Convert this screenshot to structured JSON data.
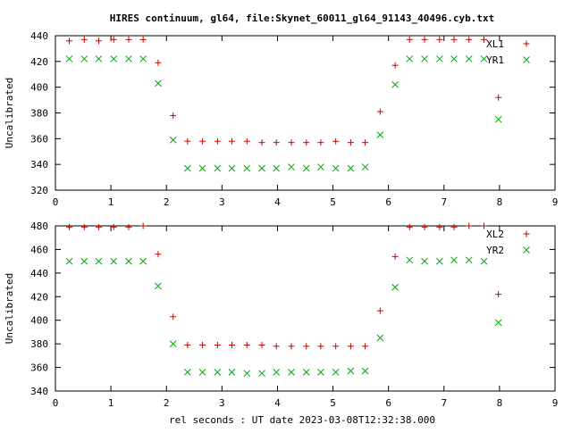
{
  "chart_data": {
    "type": "scatter",
    "title": "HIRES continuum, gl64, file:Skynet_60011_gl64_91143_40496.cyb.txt",
    "xlabel": "rel seconds : UT date 2023-03-08T12:32:38.000",
    "panels": [
      {
        "ylabel": "Uncalibrated",
        "xlim": [
          0,
          9
        ],
        "ylim": [
          320,
          440
        ],
        "xticks": [
          0,
          1,
          2,
          3,
          4,
          5,
          6,
          7,
          8,
          9
        ],
        "yticks": [
          320,
          340,
          360,
          380,
          400,
          420,
          440
        ],
        "legend_position": "top-right",
        "series": [
          {
            "name": "XL1",
            "marker": "plus",
            "color": "#cc0000",
            "x": [
              0.25,
              0.52,
              0.78,
              1.05,
              1.32,
              1.58,
              1.85,
              2.12,
              2.38,
              2.65,
              2.92,
              3.18,
              3.45,
              3.72,
              3.98,
              4.25,
              4.52,
              4.78,
              5.05,
              5.32,
              5.58,
              5.85,
              6.12,
              6.38,
              6.65,
              6.92,
              7.18,
              7.45,
              7.72,
              7.98
            ],
            "y": [
              436,
              437,
              436,
              437,
              437,
              437,
              419,
              378,
              358,
              358,
              358,
              358,
              358,
              357,
              357,
              357,
              357,
              357,
              358,
              357,
              357,
              381,
              417,
              437,
              437,
              437,
              437,
              437,
              437,
              392
            ]
          },
          {
            "name": "YR1",
            "marker": "cross",
            "color": "#00aa00",
            "x": [
              0.25,
              0.52,
              0.78,
              1.05,
              1.32,
              1.58,
              1.85,
              2.12,
              2.38,
              2.65,
              2.92,
              3.18,
              3.45,
              3.72,
              3.98,
              4.25,
              4.52,
              4.78,
              5.05,
              5.32,
              5.58,
              5.85,
              6.12,
              6.38,
              6.65,
              6.92,
              7.18,
              7.45,
              7.72,
              7.98
            ],
            "y": [
              422,
              422,
              422,
              422,
              422,
              422,
              403,
              359,
              337,
              337,
              337,
              337,
              337,
              337,
              337,
              338,
              337,
              338,
              337,
              337,
              338,
              363,
              402,
              422,
              422,
              422,
              422,
              422,
              422,
              375
            ]
          }
        ]
      },
      {
        "ylabel": "Uncalibrated",
        "xlim": [
          0,
          9
        ],
        "ylim": [
          340,
          480
        ],
        "xticks": [
          0,
          1,
          2,
          3,
          4,
          5,
          6,
          7,
          8,
          9
        ],
        "yticks": [
          340,
          360,
          380,
          400,
          420,
          440,
          460,
          480
        ],
        "legend_position": "top-right",
        "series": [
          {
            "name": "XL2",
            "marker": "plus",
            "color": "#cc0000",
            "x": [
              0.25,
              0.52,
              0.78,
              1.05,
              1.32,
              1.58,
              1.85,
              2.12,
              2.38,
              2.65,
              2.92,
              3.18,
              3.45,
              3.72,
              3.98,
              4.25,
              4.52,
              4.78,
              5.05,
              5.32,
              5.58,
              5.85,
              6.12,
              6.38,
              6.65,
              6.92,
              7.18,
              7.45,
              7.72,
              7.98
            ],
            "y": [
              479,
              479,
              479,
              479,
              479,
              480,
              456,
              403,
              379,
              379,
              379,
              379,
              379,
              379,
              378,
              378,
              378,
              378,
              378,
              378,
              378,
              408,
              454,
              479,
              479,
              479,
              479,
              480,
              480,
              422
            ]
          },
          {
            "name": "YR2",
            "marker": "cross",
            "color": "#00aa00",
            "x": [
              0.25,
              0.52,
              0.78,
              1.05,
              1.32,
              1.58,
              1.85,
              2.12,
              2.38,
              2.65,
              2.92,
              3.18,
              3.45,
              3.72,
              3.98,
              4.25,
              4.52,
              4.78,
              5.05,
              5.32,
              5.58,
              5.85,
              6.12,
              6.38,
              6.65,
              6.92,
              7.18,
              7.45,
              7.72,
              7.98
            ],
            "y": [
              450,
              450,
              450,
              450,
              450,
              450,
              429,
              380,
              356,
              356,
              356,
              356,
              355,
              355,
              356,
              356,
              356,
              356,
              356,
              357,
              357,
              385,
              428,
              451,
              450,
              450,
              451,
              451,
              450,
              398
            ]
          }
        ]
      }
    ]
  }
}
